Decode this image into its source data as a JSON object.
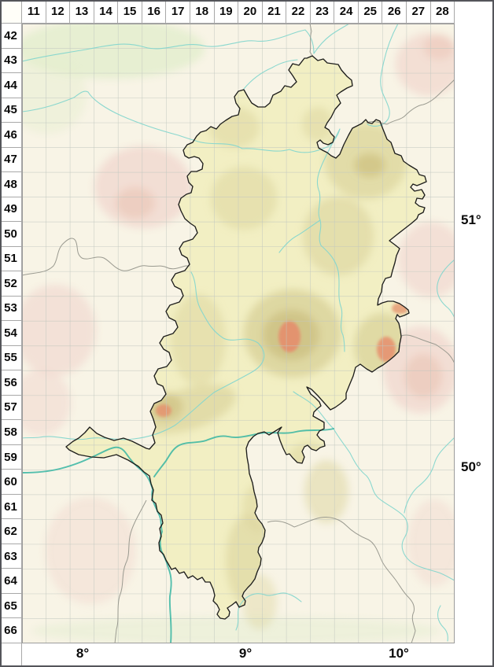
{
  "header": {
    "columns": [
      "11",
      "12",
      "13",
      "14",
      "15",
      "16",
      "17",
      "18",
      "19",
      "20",
      "21",
      "22",
      "23",
      "24",
      "25",
      "26",
      "27",
      "28"
    ],
    "rows": [
      "42",
      "43",
      "44",
      "45",
      "46",
      "47",
      "48",
      "49",
      "50",
      "51",
      "52",
      "53",
      "54",
      "55",
      "56",
      "57",
      "58",
      "59",
      "60",
      "61",
      "62",
      "63",
      "64",
      "65",
      "66"
    ]
  },
  "geo_labels": {
    "latitudes": [
      "51°",
      "50°"
    ],
    "longitudes": [
      "8°",
      "9°",
      "10°"
    ]
  },
  "colors": {
    "surrounding_land": "#f8f4e6",
    "state_fill": "#f2efc3",
    "state_outline": "#1e1e1c",
    "neighbor_border": "#9a9a90",
    "river": "#85d6ce",
    "major_river": "#36b5a2",
    "hills": "#dbd49c",
    "hills_dark": "#cdc182",
    "peaks": "#e68e6d",
    "uplands_pink": "#f1d9d0",
    "uplands_pink_dark": "#eccabd",
    "lowlands_green": "#e4eecf",
    "grid_line": "#c2c8c0",
    "label_text": "#0a0a0a",
    "frame": "#54555a"
  }
}
